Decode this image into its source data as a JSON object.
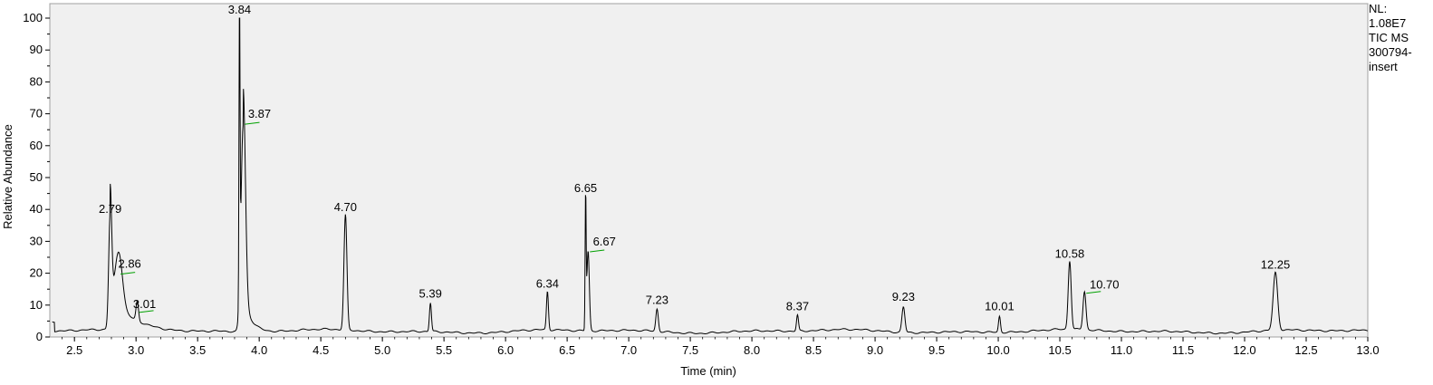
{
  "chart_data": {
    "type": "line",
    "xlabel": "Time (min)",
    "ylabel": "Relative Abundance",
    "xlim": [
      2.3,
      13.0
    ],
    "ylim": [
      0,
      100
    ],
    "x_ticks": [
      "2.5",
      "3.0",
      "3.5",
      "4.0",
      "4.5",
      "5.0",
      "5.5",
      "6.0",
      "6.5",
      "7.0",
      "7.5",
      "8.0",
      "8.5",
      "9.0",
      "9.5",
      "10.0",
      "10.5",
      "11.0",
      "11.5",
      "12.0",
      "12.5",
      "13.0"
    ],
    "y_ticks": [
      "0",
      "10",
      "20",
      "30",
      "40",
      "50",
      "60",
      "70",
      "80",
      "90",
      "100"
    ],
    "grid": false,
    "annotations": [
      {
        "text": "NL:"
      },
      {
        "text": "1.08E7"
      },
      {
        "text": "TIC  MS"
      },
      {
        "text": "300794-"
      },
      {
        "text": "insert"
      }
    ],
    "peaks": [
      {
        "label": "2.79",
        "x": 2.79,
        "y": 37.5,
        "width": 0.012
      },
      {
        "label": "2.86",
        "x": 2.86,
        "y": 20,
        "width": 0.03
      },
      {
        "label": "3.01",
        "x": 3.01,
        "y": 8,
        "width": 0.01
      },
      {
        "label": "3.84",
        "x": 3.84,
        "y": 100,
        "width": 0.004
      },
      {
        "label": "3.87",
        "x": 3.87,
        "y": 67,
        "width": 0.018
      },
      {
        "label": "4.70",
        "x": 4.7,
        "y": 38,
        "width": 0.012
      },
      {
        "label": "5.39",
        "x": 5.39,
        "y": 11,
        "width": 0.008
      },
      {
        "label": "6.34",
        "x": 6.34,
        "y": 14,
        "width": 0.008
      },
      {
        "label": "6.65",
        "x": 6.65,
        "y": 44,
        "width": 0.004
      },
      {
        "label": "6.67",
        "x": 6.67,
        "y": 27,
        "width": 0.01
      },
      {
        "label": "7.23",
        "x": 7.23,
        "y": 9,
        "width": 0.01
      },
      {
        "label": "8.37",
        "x": 8.37,
        "y": 7,
        "width": 0.008
      },
      {
        "label": "9.23",
        "x": 9.23,
        "y": 10,
        "width": 0.012
      },
      {
        "label": "10.01",
        "x": 10.01,
        "y": 7,
        "width": 0.008
      },
      {
        "label": "10.58",
        "x": 10.58,
        "y": 23.5,
        "width": 0.012
      },
      {
        "label": "10.70",
        "x": 10.7,
        "y": 14,
        "width": 0.012
      },
      {
        "label": "12.25",
        "x": 12.25,
        "y": 20,
        "width": 0.018
      }
    ]
  }
}
